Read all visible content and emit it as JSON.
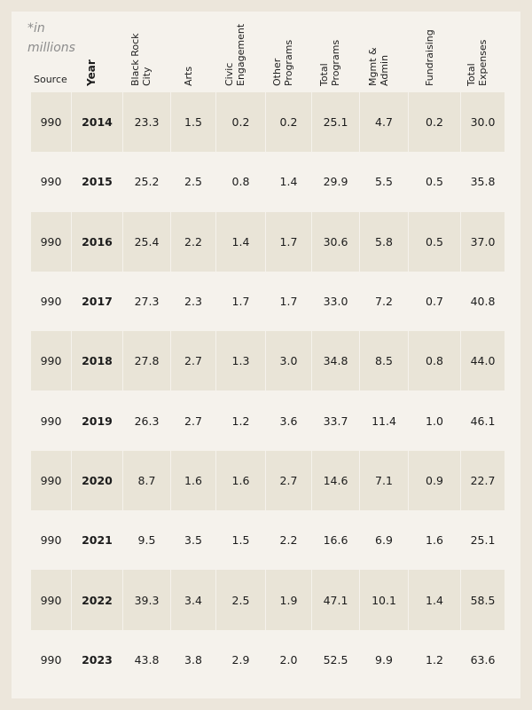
{
  "note": [
    "*in",
    "millions"
  ],
  "source_header": "Source",
  "headers": [
    {
      "lines": [
        "Year"
      ],
      "bold": true
    },
    {
      "lines": [
        "Black Rock",
        "City"
      ]
    },
    {
      "lines": [
        "Arts"
      ]
    },
    {
      "lines": [
        "Civic",
        "Engagement"
      ]
    },
    {
      "lines": [
        "Other",
        "Programs"
      ]
    },
    {
      "lines": [
        "Total",
        "Programs"
      ]
    },
    {
      "lines": [
        "Mgmt &",
        "Admin"
      ]
    },
    {
      "lines": [
        "Fundraising"
      ]
    },
    {
      "lines": [
        "Total",
        "Expenses"
      ]
    }
  ],
  "rows": [
    [
      "990",
      "2014",
      "23.3",
      "1.5",
      "0.2",
      "0.2",
      "25.1",
      "4.7",
      "0.2",
      "30.0"
    ],
    [
      "990",
      "2015",
      "25.2",
      "2.5",
      "0.8",
      "1.4",
      "29.9",
      "5.5",
      "0.5",
      "35.8"
    ],
    [
      "990",
      "2016",
      "25.4",
      "2.2",
      "1.4",
      "1.7",
      "30.6",
      "5.8",
      "0.5",
      "37.0"
    ],
    [
      "990",
      "2017",
      "27.3",
      "2.3",
      "1.7",
      "1.7",
      "33.0",
      "7.2",
      "0.7",
      "40.8"
    ],
    [
      "990",
      "2018",
      "27.8",
      "2.7",
      "1.3",
      "3.0",
      "34.8",
      "8.5",
      "0.8",
      "44.0"
    ],
    [
      "990",
      "2019",
      "26.3",
      "2.7",
      "1.2",
      "3.6",
      "33.7",
      "11.4",
      "1.0",
      "46.1"
    ],
    [
      "990",
      "2020",
      "8.7",
      "1.6",
      "1.6",
      "2.7",
      "14.6",
      "7.1",
      "0.9",
      "22.7"
    ],
    [
      "990",
      "2021",
      "9.5",
      "3.5",
      "1.5",
      "2.2",
      "16.6",
      "6.9",
      "1.6",
      "25.1"
    ],
    [
      "990",
      "2022",
      "39.3",
      "3.4",
      "2.5",
      "1.9",
      "47.1",
      "10.1",
      "1.4",
      "58.5"
    ],
    [
      "990",
      "2023",
      "43.8",
      "3.8",
      "2.9",
      "2.0",
      "52.5",
      "9.9",
      "1.2",
      "63.6"
    ]
  ]
}
